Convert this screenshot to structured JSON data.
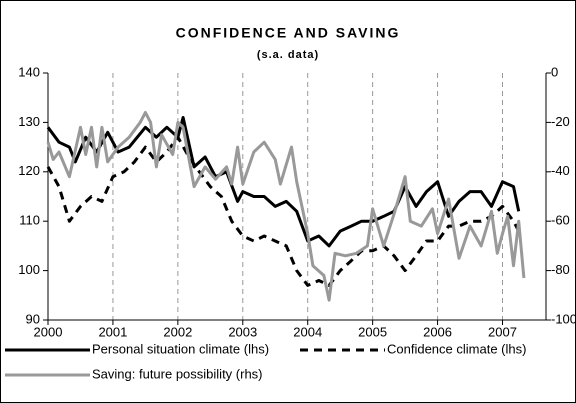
{
  "chart_data": {
    "type": "line",
    "title": "CONFIDENCE AND SAVING",
    "subtitle": "(s.a. data)",
    "xlim": [
      2000,
      2007.67
    ],
    "xticks": [
      2000,
      2001,
      2002,
      2003,
      2004,
      2005,
      2006,
      2007
    ],
    "ylim": [
      90,
      140
    ],
    "yticks": [
      90,
      100,
      110,
      120,
      130,
      140
    ],
    "y2lim": [
      -100,
      0
    ],
    "y2ticks": [
      -100,
      -80,
      -60,
      -40,
      -20,
      0
    ],
    "grid": true,
    "legend": "bottom",
    "series": [
      {
        "name": "Personal situation climate (lhs)",
        "color": "#000000",
        "style": "solid",
        "x": [
          2000.0,
          2000.17,
          2000.33,
          2000.42,
          2000.58,
          2000.75,
          2000.92,
          2001.08,
          2001.25,
          2001.5,
          2001.67,
          2001.83,
          2002.0,
          2002.08,
          2002.25,
          2002.42,
          2002.58,
          2002.75,
          2002.92,
          2003.0,
          2003.17,
          2003.33,
          2003.5,
          2003.67,
          2003.83,
          2004.0,
          2004.17,
          2004.33,
          2004.5,
          2004.67,
          2004.83,
          2005.0,
          2005.17,
          2005.33,
          2005.5,
          2005.67,
          2005.83,
          2006.0,
          2006.17,
          2006.33,
          2006.5,
          2006.67,
          2006.83,
          2007.0,
          2007.17,
          2007.25
        ],
        "values": [
          129,
          126,
          125,
          122,
          127,
          124,
          128,
          124,
          125,
          129,
          127,
          129,
          127,
          131,
          121,
          123,
          119,
          120,
          114,
          116,
          115,
          115,
          113,
          114,
          112,
          106,
          107,
          105,
          108,
          109,
          110,
          110,
          111,
          112,
          117,
          113,
          116,
          118,
          111,
          114,
          116,
          116,
          113,
          118,
          117,
          112
        ]
      },
      {
        "name": "Confidence climate (lhs)",
        "color": "#000000",
        "style": "dashed",
        "x": [
          2000.0,
          2000.17,
          2000.33,
          2000.5,
          2000.67,
          2000.83,
          2001.0,
          2001.17,
          2001.33,
          2001.5,
          2001.67,
          2001.83,
          2002.0,
          2002.17,
          2002.33,
          2002.5,
          2002.67,
          2002.83,
          2003.0,
          2003.17,
          2003.33,
          2003.5,
          2003.67,
          2003.83,
          2004.0,
          2004.17,
          2004.33,
          2004.5,
          2004.67,
          2004.83,
          2005.0,
          2005.17,
          2005.33,
          2005.5,
          2005.67,
          2005.83,
          2006.0,
          2006.17,
          2006.33,
          2006.5,
          2006.67,
          2006.83,
          2007.0,
          2007.17,
          2007.25
        ],
        "values": [
          121,
          117,
          110,
          113,
          115,
          114,
          119,
          120,
          122,
          125,
          122,
          124,
          127,
          123,
          120,
          117,
          115,
          110,
          107,
          106,
          107,
          106,
          105,
          100,
          97,
          98,
          97,
          100,
          102,
          104,
          104,
          105,
          103,
          100,
          103,
          106,
          106,
          109,
          109,
          110,
          110,
          111,
          113,
          110,
          108
        ]
      },
      {
        "name": "Saving: future possibility (rhs)",
        "color": "#999999",
        "style": "solid",
        "axis": "y2",
        "x": [
          2000.0,
          2000.08,
          2000.17,
          2000.33,
          2000.5,
          2000.58,
          2000.67,
          2000.75,
          2000.83,
          2000.92,
          2001.08,
          2001.25,
          2001.42,
          2001.5,
          2001.58,
          2001.67,
          2001.75,
          2001.92,
          2002.0,
          2002.08,
          2002.25,
          2002.42,
          2002.58,
          2002.75,
          2002.83,
          2002.92,
          2003.0,
          2003.17,
          2003.33,
          2003.5,
          2003.58,
          2003.75,
          2003.83,
          2004.0,
          2004.08,
          2004.25,
          2004.33,
          2004.42,
          2004.58,
          2004.75,
          2004.92,
          2005.0,
          2005.17,
          2005.33,
          2005.5,
          2005.58,
          2005.75,
          2005.92,
          2006.0,
          2006.17,
          2006.33,
          2006.5,
          2006.67,
          2006.83,
          2006.92,
          2007.0,
          2007.08,
          2007.17,
          2007.25,
          2007.33
        ],
        "values": [
          -28,
          -35,
          -32,
          -42,
          -22,
          -33,
          -22,
          -38,
          -22,
          -36,
          -30,
          -26,
          -20,
          -16,
          -20,
          -38,
          -25,
          -33,
          -20,
          -22,
          -46,
          -38,
          -43,
          -38,
          -45,
          -30,
          -45,
          -32,
          -28,
          -35,
          -45,
          -30,
          -44,
          -65,
          -78,
          -82,
          -92,
          -73,
          -74,
          -73,
          -70,
          -55,
          -70,
          -57,
          -42,
          -60,
          -62,
          -55,
          -65,
          -51,
          -75,
          -62,
          -70,
          -56,
          -73,
          -65,
          -58,
          -78,
          -60,
          -83
        ]
      }
    ]
  }
}
